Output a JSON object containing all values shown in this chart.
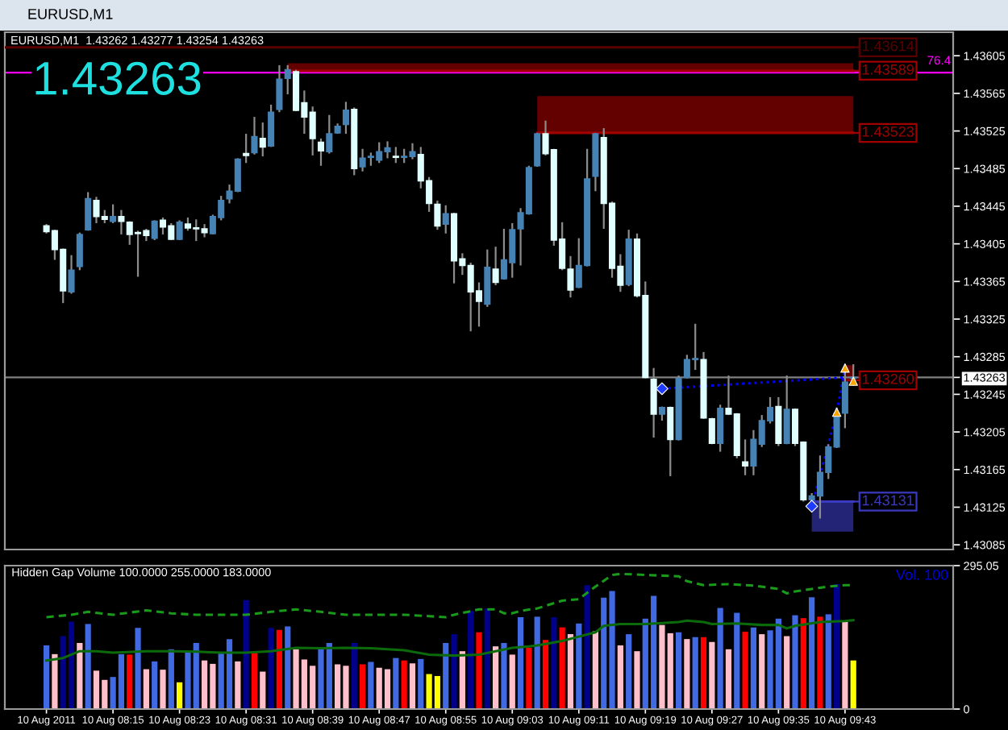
{
  "chart_data": [
    {
      "type": "candlestick",
      "title": "EURUSD,M1",
      "annotations": [
        "EURUSD,M1  1.43262 1.43277 1.43254 1.43263",
        "1.43263",
        {
          "text": "76.4",
          "x": "2011-08-10T09:56",
          "y": 1.43587
        }
      ],
      "x": [
        "2011-08-10T08:07",
        "2011-08-10T08:08",
        "2011-08-10T08:09",
        "2011-08-10T08:10",
        "2011-08-10T08:11",
        "2011-08-10T08:12",
        "2011-08-10T08:13",
        "2011-08-10T08:14",
        "2011-08-10T08:15",
        "2011-08-10T08:16",
        "2011-08-10T08:17",
        "2011-08-10T08:18",
        "2011-08-10T08:19",
        "2011-08-10T08:20",
        "2011-08-10T08:21",
        "2011-08-10T08:22",
        "2011-08-10T08:23",
        "2011-08-10T08:24",
        "2011-08-10T08:25",
        "2011-08-10T08:26",
        "2011-08-10T08:27",
        "2011-08-10T08:28",
        "2011-08-10T08:29",
        "2011-08-10T08:30",
        "2011-08-10T08:31",
        "2011-08-10T08:32",
        "2011-08-10T08:33",
        "2011-08-10T08:34",
        "2011-08-10T08:35",
        "2011-08-10T08:36",
        "2011-08-10T08:37",
        "2011-08-10T08:38",
        "2011-08-10T08:39",
        "2011-08-10T08:40",
        "2011-08-10T08:41",
        "2011-08-10T08:42",
        "2011-08-10T08:43",
        "2011-08-10T08:44",
        "2011-08-10T08:45",
        "2011-08-10T08:46",
        "2011-08-10T08:47",
        "2011-08-10T08:48",
        "2011-08-10T08:49",
        "2011-08-10T08:50",
        "2011-08-10T08:51",
        "2011-08-10T08:52",
        "2011-08-10T08:53",
        "2011-08-10T08:54",
        "2011-08-10T08:55",
        "2011-08-10T08:56",
        "2011-08-10T08:57",
        "2011-08-10T08:58",
        "2011-08-10T08:59",
        "2011-08-10T09:00",
        "2011-08-10T09:01",
        "2011-08-10T09:02",
        "2011-08-10T09:03",
        "2011-08-10T09:04",
        "2011-08-10T09:05",
        "2011-08-10T09:06",
        "2011-08-10T09:07",
        "2011-08-10T09:08",
        "2011-08-10T09:09",
        "2011-08-10T09:10",
        "2011-08-10T09:11",
        "2011-08-10T09:12",
        "2011-08-10T09:13",
        "2011-08-10T09:14",
        "2011-08-10T09:15",
        "2011-08-10T09:16",
        "2011-08-10T09:17",
        "2011-08-10T09:18",
        "2011-08-10T09:19",
        "2011-08-10T09:20",
        "2011-08-10T09:21",
        "2011-08-10T09:22",
        "2011-08-10T09:23",
        "2011-08-10T09:24",
        "2011-08-10T09:25",
        "2011-08-10T09:26",
        "2011-08-10T09:27",
        "2011-08-10T09:28",
        "2011-08-10T09:29",
        "2011-08-10T09:30",
        "2011-08-10T09:31",
        "2011-08-10T09:32",
        "2011-08-10T09:33",
        "2011-08-10T09:34",
        "2011-08-10T09:35",
        "2011-08-10T09:36",
        "2011-08-10T09:37",
        "2011-08-10T09:38",
        "2011-08-10T09:39",
        "2011-08-10T09:40",
        "2011-08-10T09:41",
        "2011-08-10T09:42",
        "2011-08-10T09:43",
        "2011-08-10T09:44"
      ],
      "ohlc": [
        [
          1.43424,
          1.43426,
          1.43416,
          1.43418
        ],
        [
          1.43419,
          1.4342,
          1.43388,
          1.43399
        ],
        [
          1.43399,
          1.434,
          1.43342,
          1.43355
        ],
        [
          1.43354,
          1.43393,
          1.43352,
          1.43377
        ],
        [
          1.43381,
          1.43417,
          1.43377,
          1.43415
        ],
        [
          1.4342,
          1.4346,
          1.43419,
          1.43453
        ],
        [
          1.43451,
          1.43455,
          1.43427,
          1.43434
        ],
        [
          1.43434,
          1.43441,
          1.43427,
          1.43431
        ],
        [
          1.43429,
          1.43447,
          1.43427,
          1.43434
        ],
        [
          1.43434,
          1.43441,
          1.43415,
          1.43429
        ],
        [
          1.43428,
          1.43429,
          1.43404,
          1.43415
        ],
        [
          1.43417,
          1.43419,
          1.4337,
          1.43416
        ],
        [
          1.43419,
          1.43421,
          1.43408,
          1.43414
        ],
        [
          1.43411,
          1.4343,
          1.43409,
          1.43429
        ],
        [
          1.4343,
          1.43433,
          1.43415,
          1.43423
        ],
        [
          1.43424,
          1.43427,
          1.43409,
          1.4341
        ],
        [
          1.4341,
          1.4343,
          1.43409,
          1.43428
        ],
        [
          1.43426,
          1.43433,
          1.43419,
          1.43422
        ],
        [
          1.43422,
          1.43431,
          1.43408,
          1.43421
        ],
        [
          1.43421,
          1.43426,
          1.43412,
          1.43417
        ],
        [
          1.43416,
          1.43436,
          1.43415,
          1.43434
        ],
        [
          1.43433,
          1.43456,
          1.4343,
          1.43451
        ],
        [
          1.43453,
          1.43468,
          1.43448,
          1.43461
        ],
        [
          1.43461,
          1.43496,
          1.4346,
          1.43495
        ],
        [
          1.43501,
          1.43522,
          1.43491,
          1.43499
        ],
        [
          1.43502,
          1.4354,
          1.435,
          1.43519
        ],
        [
          1.43517,
          1.43534,
          1.43498,
          1.43508
        ],
        [
          1.43509,
          1.43553,
          1.43508,
          1.43545
        ],
        [
          1.43548,
          1.43595,
          1.43545,
          1.4358
        ],
        [
          1.43581,
          1.43595,
          1.43564,
          1.4359
        ],
        [
          1.43588,
          1.4359,
          1.43546,
          1.43547
        ],
        [
          1.43555,
          1.43568,
          1.43522,
          1.4354
        ],
        [
          1.43545,
          1.43551,
          1.43499,
          1.43517
        ],
        [
          1.43513,
          1.43517,
          1.43488,
          1.43504
        ],
        [
          1.43503,
          1.43542,
          1.43501,
          1.43522
        ],
        [
          1.43523,
          1.43533,
          1.43522,
          1.4353
        ],
        [
          1.43532,
          1.43556,
          1.43522,
          1.43547
        ],
        [
          1.43548,
          1.4355,
          1.43478,
          1.43485
        ],
        [
          1.43487,
          1.43506,
          1.43482,
          1.43496
        ],
        [
          1.43497,
          1.43502,
          1.43488,
          1.43498
        ],
        [
          1.43494,
          1.43513,
          1.43491,
          1.43503
        ],
        [
          1.43503,
          1.43514,
          1.43496,
          1.43507
        ],
        [
          1.43498,
          1.43508,
          1.43491,
          1.43497
        ],
        [
          1.43497,
          1.43506,
          1.43491,
          1.43498
        ],
        [
          1.43498,
          1.43512,
          1.43495,
          1.43503
        ],
        [
          1.435,
          1.43508,
          1.43464,
          1.43472
        ],
        [
          1.43472,
          1.43476,
          1.43439,
          1.43448
        ],
        [
          1.43447,
          1.43451,
          1.4342,
          1.43424
        ],
        [
          1.43426,
          1.43446,
          1.43416,
          1.43437
        ],
        [
          1.43437,
          1.43438,
          1.43363,
          1.43387
        ],
        [
          1.43389,
          1.43395,
          1.43372,
          1.43382
        ],
        [
          1.43382,
          1.43385,
          1.43312,
          1.43354
        ],
        [
          1.43355,
          1.43364,
          1.43317,
          1.43344
        ],
        [
          1.43341,
          1.43399,
          1.43338,
          1.4338
        ],
        [
          1.43378,
          1.43402,
          1.43361,
          1.43364
        ],
        [
          1.43368,
          1.43421,
          1.43367,
          1.43388
        ],
        [
          1.43385,
          1.43427,
          1.43369,
          1.4342
        ],
        [
          1.43421,
          1.43443,
          1.43382,
          1.43438
        ],
        [
          1.43437,
          1.43488,
          1.43436,
          1.43486
        ],
        [
          1.43488,
          1.43523,
          1.43487,
          1.43522
        ],
        [
          1.43522,
          1.43536,
          1.43499,
          1.43501
        ],
        [
          1.43505,
          1.43506,
          1.43403,
          1.43409
        ],
        [
          1.4341,
          1.43428,
          1.43377,
          1.43379
        ],
        [
          1.43378,
          1.43392,
          1.43348,
          1.43356
        ],
        [
          1.43359,
          1.43411,
          1.43358,
          1.43382
        ],
        [
          1.43382,
          1.43506,
          1.43381,
          1.43474
        ],
        [
          1.43477,
          1.43523,
          1.43461,
          1.43522
        ],
        [
          1.43518,
          1.43528,
          1.43421,
          1.43448
        ],
        [
          1.43448,
          1.4345,
          1.43369,
          1.43379
        ],
        [
          1.43381,
          1.43394,
          1.43354,
          1.43361
        ],
        [
          1.43362,
          1.4342,
          1.4336,
          1.4341
        ],
        [
          1.4341,
          1.43416,
          1.43348,
          1.4335
        ],
        [
          1.4335,
          1.43365,
          1.43262,
          1.43263
        ],
        [
          1.43261,
          1.43273,
          1.43199,
          1.43224
        ],
        [
          1.43224,
          1.43232,
          1.43217,
          1.43231
        ],
        [
          1.43231,
          1.43232,
          1.43158,
          1.43197
        ],
        [
          1.43197,
          1.43265,
          1.43196,
          1.43262
        ],
        [
          1.43263,
          1.43287,
          1.43262,
          1.43282
        ],
        [
          1.43282,
          1.4332,
          1.43271,
          1.43283
        ],
        [
          1.43282,
          1.4329,
          1.43219,
          1.4322
        ],
        [
          1.43219,
          1.4322,
          1.43192,
          1.43193
        ],
        [
          1.43193,
          1.43234,
          1.43184,
          1.4323
        ],
        [
          1.4323,
          1.43265,
          1.43223,
          1.43224
        ],
        [
          1.43224,
          1.43225,
          1.43177,
          1.4318
        ],
        [
          1.43173,
          1.43197,
          1.43159,
          1.43169
        ],
        [
          1.43169,
          1.43207,
          1.43159,
          1.43197
        ],
        [
          1.43192,
          1.43223,
          1.43189,
          1.43217
        ],
        [
          1.43217,
          1.43242,
          1.43214,
          1.43231
        ],
        [
          1.43232,
          1.43242,
          1.4319,
          1.43193
        ],
        [
          1.43193,
          1.43265,
          1.43192,
          1.43229
        ],
        [
          1.43229,
          1.4323,
          1.4319,
          1.43193
        ],
        [
          1.43194,
          1.43195,
          1.43131,
          1.43133
        ],
        [
          1.43133,
          1.4314,
          1.43131,
          1.43137
        ],
        [
          1.43137,
          1.4318,
          1.43113,
          1.43162
        ],
        [
          1.43162,
          1.43192,
          1.43155,
          1.43189
        ],
        [
          1.43189,
          1.43231,
          1.43188,
          1.43225
        ],
        [
          1.43225,
          1.43273,
          1.43209,
          1.43258
        ],
        [
          1.43262,
          1.43277,
          1.43254,
          1.43263
        ]
      ],
      "colors": [
        "#e0ffff",
        "#e0ffff",
        "#e0ffff",
        "#4682b4",
        "#4682b4",
        "#4682b4",
        "#e0ffff",
        "#e0ffff",
        "#4682b4",
        "#e0ffff",
        "#e0ffff",
        "#e0ffff",
        "#e0ffff",
        "#4682b4",
        "#e0ffff",
        "#e0ffff",
        "#4682b4",
        "#e0ffff",
        "#e0ffff",
        "#e0ffff",
        "#4682b4",
        "#4682b4",
        "#4682b4",
        "#4682b4",
        "#e0ffff",
        "#4682b4",
        "#e0ffff",
        "#4682b4",
        "#4682b4",
        "#4682b4",
        "#e0ffff",
        "#e0ffff",
        "#e0ffff",
        "#e0ffff",
        "#4682b4",
        "#4682b4",
        "#4682b4",
        "#e0ffff",
        "#4682b4",
        "#4682b4",
        "#4682b4",
        "#4682b4",
        "#e0ffff",
        "#4682b4",
        "#4682b4",
        "#e0ffff",
        "#e0ffff",
        "#e0ffff",
        "#4682b4",
        "#e0ffff",
        "#e0ffff",
        "#e0ffff",
        "#e0ffff",
        "#4682b4",
        "#e0ffff",
        "#4682b4",
        "#4682b4",
        "#4682b4",
        "#4682b4",
        "#4682b4",
        "#e0ffff",
        "#e0ffff",
        "#e0ffff",
        "#e0ffff",
        "#4682b4",
        "#4682b4",
        "#4682b4",
        "#e0ffff",
        "#e0ffff",
        "#e0ffff",
        "#4682b4",
        "#e0ffff",
        "#e0ffff",
        "#e0ffff",
        "#4682b4",
        "#e0ffff",
        "#4682b4",
        "#4682b4",
        "#4682b4",
        "#e0ffff",
        "#e0ffff",
        "#4682b4",
        "#e0ffff",
        "#e0ffff",
        "#e0ffff",
        "#4682b4",
        "#4682b4",
        "#4682b4",
        "#e0ffff",
        "#4682b4",
        "#e0ffff",
        "#e0ffff",
        "#4682b4",
        "#4682b4",
        "#4682b4",
        "#4682b4",
        "#4682b4",
        "#4682b4"
      ],
      "series": [
        {
          "type": "line",
          "name": "1.43614",
          "x": [
            "2011-08-10T08:02",
            "2011-08-10T09:44"
          ],
          "values": [
            1.43614,
            1.43614
          ],
          "color": "#5a0000"
        },
        {
          "type": "line",
          "name": "1.43589",
          "x": [
            "2011-08-10T08:36",
            "2011-08-10T09:44"
          ],
          "values": [
            1.43589,
            1.43589
          ],
          "lower": [
            1.43589,
            1.43589
          ],
          "upper": [
            1.43597,
            1.43597
          ],
          "color": "#a00000"
        },
        {
          "type": "line",
          "name": "1.43523",
          "x": [
            "2011-08-10T09:06",
            "2011-08-10T09:44"
          ],
          "values": [
            1.43523,
            1.43523
          ],
          "lower": [
            1.43523,
            1.43523
          ],
          "upper": [
            1.43562,
            1.43562
          ],
          "color": "#a00000"
        },
        {
          "type": "line",
          "name": "1.43260",
          "x": [
            "2011-08-10T09:43",
            "2011-08-10T09:44"
          ],
          "values": [
            1.4326,
            1.4326
          ],
          "lower": [
            1.4326,
            1.4326
          ],
          "upper": [
            1.43276,
            1.43276
          ],
          "color": "#a00000"
        },
        {
          "type": "line",
          "name": "1.43131",
          "x": [
            "2011-08-10T09:39",
            "2011-08-10T09:44"
          ],
          "values": [
            1.43131,
            1.43131
          ],
          "lower": [
            1.43099,
            1.43099
          ],
          "upper": [
            1.43131,
            1.43131
          ],
          "color": "#3a3ac0"
        },
        {
          "type": "line",
          "x": [
            "2011-08-10T09:21",
            "2011-08-10T09:43"
          ],
          "values": [
            1.43251,
            1.43263
          ],
          "color": "#0000ff",
          "line_style": "dotted"
        },
        {
          "type": "line",
          "x": [
            "2011-08-10T09:39",
            "2011-08-10T09:42",
            "2011-08-10T09:43"
          ],
          "values": [
            1.43126,
            1.43226,
            1.43273
          ],
          "color": "#0000ff",
          "line_style": "dotted"
        },
        {
          "type": "scatter",
          "x": [
            "2011-08-10T09:21",
            "2011-08-10T09:39"
          ],
          "values": [
            1.43251,
            1.43126
          ],
          "color": "#1e3cff",
          "marker": "diamond"
        },
        {
          "type": "scatter",
          "x": [
            "2011-08-10T09:42",
            "2011-08-10T09:43",
            "2011-08-10T09:44"
          ],
          "values": [
            1.43226,
            1.43273,
            1.43259
          ],
          "color": "#ffa500",
          "marker": "triangle"
        }
      ],
      "legend": "right",
      "xlim": [
        "2011-08-10T08:02",
        "2011-08-10T09:56"
      ],
      "ylim": [
        1.4308,
        1.4363
      ],
      "yticks": [
        1.43085,
        1.43125,
        1.43165,
        1.43205,
        1.43245,
        1.43285,
        1.43325,
        1.43365,
        1.43405,
        1.43445,
        1.43485,
        1.43525,
        1.43565,
        1.43605,
        {
          "value": 1.43263,
          "label": "1.43263"
        }
      ],
      "ref_lines": [
        {
          "axis": "y",
          "value": 1.43587,
          "color": "#ff00ff",
          "line_style": "solid"
        },
        {
          "axis": "y",
          "value": 1.43263,
          "color": "#808080",
          "line_style": "solid"
        }
      ],
      "tick_labels": "y"
    },
    {
      "type": "bar",
      "title": "Hidden Gap Volume 100.0000 255.0000 183.0000",
      "annotations": [
        "Vol. 100"
      ],
      "x": [
        "2011-08-10T08:07",
        "2011-08-10T08:08",
        "2011-08-10T08:09",
        "2011-08-10T08:10",
        "2011-08-10T08:11",
        "2011-08-10T08:12",
        "2011-08-10T08:13",
        "2011-08-10T08:14",
        "2011-08-10T08:15",
        "2011-08-10T08:16",
        "2011-08-10T08:17",
        "2011-08-10T08:18",
        "2011-08-10T08:19",
        "2011-08-10T08:20",
        "2011-08-10T08:21",
        "2011-08-10T08:22",
        "2011-08-10T08:23",
        "2011-08-10T08:24",
        "2011-08-10T08:25",
        "2011-08-10T08:26",
        "2011-08-10T08:27",
        "2011-08-10T08:28",
        "2011-08-10T08:29",
        "2011-08-10T08:30",
        "2011-08-10T08:31",
        "2011-08-10T08:32",
        "2011-08-10T08:33",
        "2011-08-10T08:34",
        "2011-08-10T08:35",
        "2011-08-10T08:36",
        "2011-08-10T08:37",
        "2011-08-10T08:38",
        "2011-08-10T08:39",
        "2011-08-10T08:40",
        "2011-08-10T08:41",
        "2011-08-10T08:42",
        "2011-08-10T08:43",
        "2011-08-10T08:44",
        "2011-08-10T08:45",
        "2011-08-10T08:46",
        "2011-08-10T08:47",
        "2011-08-10T08:48",
        "2011-08-10T08:49",
        "2011-08-10T08:50",
        "2011-08-10T08:51",
        "2011-08-10T08:52",
        "2011-08-10T08:53",
        "2011-08-10T08:54",
        "2011-08-10T08:55",
        "2011-08-10T08:56",
        "2011-08-10T08:57",
        "2011-08-10T08:58",
        "2011-08-10T08:59",
        "2011-08-10T09:00",
        "2011-08-10T09:01",
        "2011-08-10T09:02",
        "2011-08-10T09:03",
        "2011-08-10T09:04",
        "2011-08-10T09:05",
        "2011-08-10T09:06",
        "2011-08-10T09:07",
        "2011-08-10T09:08",
        "2011-08-10T09:09",
        "2011-08-10T09:10",
        "2011-08-10T09:11",
        "2011-08-10T09:12",
        "2011-08-10T09:13",
        "2011-08-10T09:14",
        "2011-08-10T09:15",
        "2011-08-10T09:16",
        "2011-08-10T09:17",
        "2011-08-10T09:18",
        "2011-08-10T09:19",
        "2011-08-10T09:20",
        "2011-08-10T09:21",
        "2011-08-10T09:22",
        "2011-08-10T09:23",
        "2011-08-10T09:24",
        "2011-08-10T09:25",
        "2011-08-10T09:26",
        "2011-08-10T09:27",
        "2011-08-10T09:28",
        "2011-08-10T09:29",
        "2011-08-10T09:30",
        "2011-08-10T09:31",
        "2011-08-10T09:32",
        "2011-08-10T09:33",
        "2011-08-10T09:34",
        "2011-08-10T09:35",
        "2011-08-10T09:36",
        "2011-08-10T09:37",
        "2011-08-10T09:38",
        "2011-08-10T09:39",
        "2011-08-10T09:40",
        "2011-08-10T09:41",
        "2011-08-10T09:42",
        "2011-08-10T09:43",
        "2011-08-10T09:44"
      ],
      "series": [
        {
          "type": "bar",
          "values": [
            131,
            113,
            150,
            180,
            136,
            175,
            79,
            60,
            66,
            113,
            112,
            167,
            82,
            98,
            81,
            123,
            55,
            118,
            136,
            100,
            93,
            114,
            144,
            98,
            224,
            119,
            77,
            167,
            163,
            170,
            123,
            102,
            89,
            125,
            136,
            92,
            89,
            136,
            92,
            97,
            85,
            82,
            105,
            100,
            94,
            103,
            72,
            68,
            136,
            154,
            119,
            202,
            158,
            207,
            129,
            136,
            112,
            189,
            126,
            190,
            142,
            189,
            168,
            154,
            176,
            255,
            160,
            229,
            243,
            131,
            154,
            119,
            186,
            233,
            173,
            156,
            158,
            144,
            148,
            148,
            138,
            208,
            123,
            198,
            159,
            168,
            154,
            162,
            186,
            150,
            193,
            187,
            230,
            190,
            195,
            257,
            180,
            100
          ],
          "colors": [
            "#4169e1",
            "#ffc0cb",
            "#00008b",
            "#00008b",
            "#ffc0cb",
            "#4169e1",
            "#ffc0cb",
            "#ffc0cb",
            "#4169e1",
            "#4169e1",
            "#ff0000",
            "#4169e1",
            "#ffc0cb",
            "#4169e1",
            "#ffc0cb",
            "#4169e1",
            "#ffff00",
            "#4169e1",
            "#4169e1",
            "#ffc0cb",
            "#ffc0cb",
            "#4169e1",
            "#4169e1",
            "#ffc0cb",
            "#00008b",
            "#ff0000",
            "#ffc0cb",
            "#00008b",
            "#ff0000",
            "#4169e1",
            "#ffc0cb",
            "#ffc0cb",
            "#ffc0cb",
            "#4169e1",
            "#4169e1",
            "#ffc0cb",
            "#ffc0cb",
            "#00008b",
            "#ff0000",
            "#4169e1",
            "#ffc0cb",
            "#ffc0cb",
            "#4169e1",
            "#ff0000",
            "#ffc0cb",
            "#4169e1",
            "#ffff00",
            "#ffff00",
            "#4169e1",
            "#00008b",
            "#ffc0cb",
            "#00008b",
            "#ff0000",
            "#00008b",
            "#ffc0cb",
            "#4169e1",
            "#ffc0cb",
            "#4169e1",
            "#ff0000",
            "#4169e1",
            "#ff0000",
            "#00008b",
            "#ff0000",
            "#ffc0cb",
            "#4169e1",
            "#00008b",
            "#ffc0cb",
            "#4169e1",
            "#4169e1",
            "#ffc0cb",
            "#4169e1",
            "#ffc0cb",
            "#4169e1",
            "#4169e1",
            "#ffc0cb",
            "#ffc0cb",
            "#4169e1",
            "#ffc0cb",
            "#4169e1",
            "#ff0000",
            "#ffc0cb",
            "#4169e1",
            "#ffc0cb",
            "#4169e1",
            "#ff0000",
            "#4169e1",
            "#ffc0cb",
            "#4169e1",
            "#4169e1",
            "#ffc0cb",
            "#4169e1",
            "#ff0000",
            "#4169e1",
            "#ff0000",
            "#4169e1",
            "#00008b",
            "#ffc0cb",
            "#ffff00"
          ]
        },
        {
          "type": "line",
          "color": "#1a9a1a",
          "line_style": "dashed",
          "x": [
            "2011-08-10T08:07",
            "2011-08-10T08:10",
            "2011-08-10T08:12",
            "2011-08-10T08:15",
            "2011-08-10T08:19",
            "2011-08-10T08:22",
            "2011-08-10T08:25",
            "2011-08-10T08:28",
            "2011-08-10T08:31",
            "2011-08-10T08:34",
            "2011-08-10T08:37",
            "2011-08-10T08:40",
            "2011-08-10T08:43",
            "2011-08-10T08:46",
            "2011-08-10T08:50",
            "2011-08-10T08:53",
            "2011-08-10T08:55",
            "2011-08-10T08:56",
            "2011-08-10T08:59",
            "2011-08-10T09:01",
            "2011-08-10T09:02",
            "2011-08-10T09:03",
            "2011-08-10T09:04",
            "2011-08-10T09:06",
            "2011-08-10T09:09",
            "2011-08-10T09:11",
            "2011-08-10T09:13",
            "2011-08-10T09:15",
            "2011-08-10T09:16",
            "2011-08-10T09:19",
            "2011-08-10T09:23",
            "2011-08-10T09:24",
            "2011-08-10T09:26",
            "2011-08-10T09:29",
            "2011-08-10T09:32",
            "2011-08-10T09:35",
            "2011-08-10T09:36",
            "2011-08-10T09:37",
            "2011-08-10T09:39",
            "2011-08-10T09:41",
            "2011-08-10T09:43",
            "2011-08-10T09:44"
          ],
          "values": [
            189,
            194,
            200,
            194,
            203,
            197,
            194,
            194,
            194,
            200,
            205,
            200,
            194,
            194,
            194,
            191,
            189,
            194,
            205,
            205,
            197,
            197,
            202,
            207,
            223,
            226,
            252,
            276,
            278,
            276,
            273,
            263,
            255,
            257,
            254,
            247,
            238,
            242,
            247,
            252,
            255,
            255
          ]
        },
        {
          "type": "line",
          "color": "#0b6b0b",
          "line_style": "solid",
          "x": [
            "2011-08-10T08:07",
            "2011-08-10T08:09",
            "2011-08-10T08:11",
            "2011-08-10T08:13",
            "2011-08-10T08:15",
            "2011-08-10T08:19",
            "2011-08-10T08:22",
            "2011-08-10T08:25",
            "2011-08-10T08:28",
            "2011-08-10T08:31",
            "2011-08-10T08:34",
            "2011-08-10T08:37",
            "2011-08-10T08:40",
            "2011-08-10T08:43",
            "2011-08-10T08:46",
            "2011-08-10T08:50",
            "2011-08-10T08:53",
            "2011-08-10T08:56",
            "2011-08-10T08:59",
            "2011-08-10T09:01",
            "2011-08-10T09:03",
            "2011-08-10T09:05",
            "2011-08-10T09:06",
            "2011-08-10T09:09",
            "2011-08-10T09:11",
            "2011-08-10T09:13",
            "2011-08-10T09:14",
            "2011-08-10T09:16",
            "2011-08-10T09:19",
            "2011-08-10T09:23",
            "2011-08-10T09:24",
            "2011-08-10T09:26",
            "2011-08-10T09:27",
            "2011-08-10T09:30",
            "2011-08-10T09:33",
            "2011-08-10T09:35",
            "2011-08-10T09:36",
            "2011-08-10T09:37",
            "2011-08-10T09:40",
            "2011-08-10T09:43",
            "2011-08-10T09:44"
          ],
          "values": [
            100,
            105,
            119,
            119,
            116,
            119,
            119,
            118,
            116,
            116,
            119,
            126,
            125,
            126,
            125,
            121,
            112,
            110,
            112,
            119,
            126,
            129,
            131,
            140,
            149,
            158,
            171,
            175,
            175,
            179,
            182,
            179,
            175,
            176,
            173,
            173,
            166,
            171,
            179,
            181,
            183
          ]
        }
      ],
      "xlim": [
        "2011-08-10T08:02",
        "2011-08-10T09:56"
      ],
      "xticks": [
        {
          "value": "2011-08-10T08:07",
          "label": "10 Aug 2011"
        },
        {
          "value": "2011-08-10T08:15",
          "label": "10 Aug 08:15"
        },
        {
          "value": "2011-08-10T08:23",
          "label": "10 Aug 08:23"
        },
        {
          "value": "2011-08-10T08:31",
          "label": "10 Aug 08:31"
        },
        {
          "value": "2011-08-10T08:39",
          "label": "10 Aug 08:39"
        },
        {
          "value": "2011-08-10T08:47",
          "label": "10 Aug 08:47"
        },
        {
          "value": "2011-08-10T08:55",
          "label": "10 Aug 08:55"
        },
        {
          "value": "2011-08-10T09:03",
          "label": "10 Aug 09:03"
        },
        {
          "value": "2011-08-10T09:11",
          "label": "10 Aug 09:11"
        },
        {
          "value": "2011-08-10T09:19",
          "label": "10 Aug 09:19"
        },
        {
          "value": "2011-08-10T09:27",
          "label": "10 Aug 09:27"
        },
        {
          "value": "2011-08-10T09:35",
          "label": "10 Aug 09:35"
        },
        {
          "value": "2011-08-10T09:43",
          "label": "10 Aug 09:43"
        }
      ],
      "ylim": [
        0,
        295.05
      ],
      "yticks": [
        0,
        295.05
      ]
    }
  ]
}
